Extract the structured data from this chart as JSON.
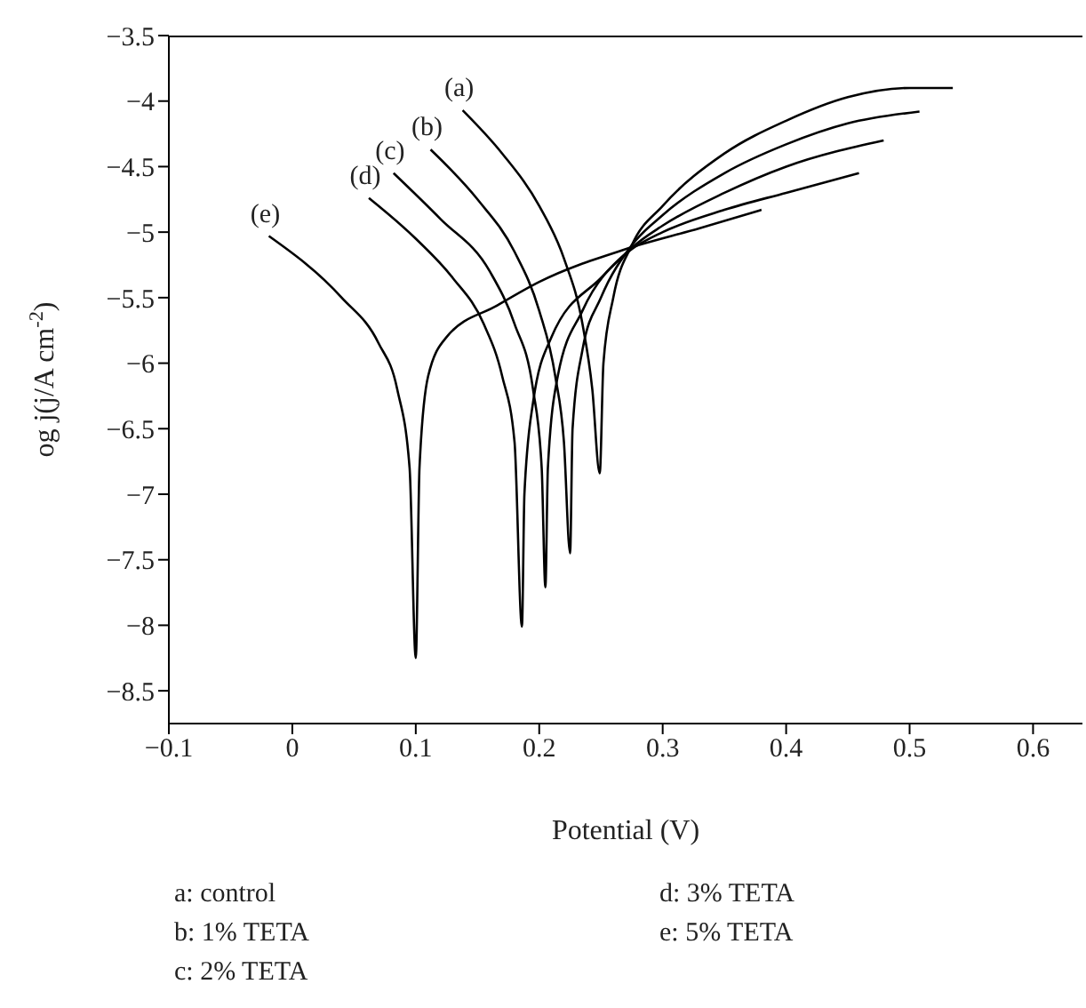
{
  "chart_data": {
    "type": "line",
    "xlabel": "Potential (V)",
    "ylabel": "og j(j/A cm$^{-2}$)",
    "xlim": [
      -0.1,
      0.64
    ],
    "xticks": [
      -0.1,
      0,
      0.1,
      0.2,
      0.3,
      0.4,
      0.5,
      0.6
    ],
    "ylim": [
      -8.75,
      -3.5
    ],
    "yticks": [
      -3.5,
      -4,
      -4.5,
      -5,
      -5.5,
      -6,
      -6.5,
      -7,
      -7.5,
      -8,
      -8.5
    ],
    "legend": false,
    "marker": "none",
    "line_style": "solid",
    "series": [
      {
        "name": "(a)",
        "color": "#000000",
        "x": [
          0.138,
          0.17,
          0.2,
          0.22,
          0.235,
          0.243,
          0.249,
          0.252,
          0.26,
          0.275,
          0.3,
          0.35,
          0.4,
          0.45,
          0.5,
          0.535
        ],
        "values": [
          -4.07,
          -4.4,
          -4.8,
          -5.2,
          -5.7,
          -6.2,
          -6.84,
          -6.0,
          -5.5,
          -5.1,
          -4.8,
          -4.4,
          -4.15,
          -3.97,
          -3.9,
          -3.9
        ]
      },
      {
        "name": "(b)",
        "color": "#000000",
        "x": [
          0.112,
          0.15,
          0.18,
          0.2,
          0.213,
          0.22,
          0.225,
          0.227,
          0.235,
          0.25,
          0.275,
          0.3,
          0.35,
          0.4,
          0.45,
          0.508
        ],
        "values": [
          -4.37,
          -4.75,
          -5.15,
          -5.6,
          -6.1,
          -6.6,
          -7.45,
          -6.5,
          -5.9,
          -5.5,
          -5.1,
          -4.87,
          -4.55,
          -4.33,
          -4.17,
          -4.08
        ]
      },
      {
        "name": "(c)",
        "color": "#000000",
        "x": [
          0.082,
          0.12,
          0.16,
          0.18,
          0.195,
          0.202,
          0.205,
          0.207,
          0.215,
          0.235,
          0.275,
          0.3,
          0.35,
          0.4,
          0.479
        ],
        "values": [
          -4.55,
          -4.9,
          -5.3,
          -5.7,
          -6.2,
          -6.8,
          -7.71,
          -6.8,
          -6.1,
          -5.6,
          -5.12,
          -4.95,
          -4.7,
          -4.5,
          -4.3
        ]
      },
      {
        "name": "(d)",
        "color": "#000000",
        "x": [
          0.062,
          0.1,
          0.13,
          0.155,
          0.17,
          0.18,
          0.186,
          0.188,
          0.195,
          0.21,
          0.25,
          0.275,
          0.3,
          0.35,
          0.4,
          0.459
        ],
        "values": [
          -4.74,
          -5.05,
          -5.35,
          -5.7,
          -6.1,
          -6.6,
          -8.01,
          -7.0,
          -6.3,
          -5.8,
          -5.35,
          -5.13,
          -5.0,
          -4.83,
          -4.7,
          -4.55
        ]
      },
      {
        "name": "(e)",
        "color": "#000000",
        "x": [
          -0.019,
          0.04,
          0.07,
          0.085,
          0.095,
          0.1,
          0.103,
          0.11,
          0.125,
          0.166,
          0.2,
          0.27,
          0.33,
          0.38
        ],
        "values": [
          -5.03,
          -5.5,
          -5.85,
          -6.2,
          -6.8,
          -8.25,
          -6.8,
          -6.1,
          -5.8,
          -5.56,
          -5.38,
          -5.13,
          -4.97,
          -4.83
        ]
      }
    ],
    "annotations": [
      "a: control",
      "b: 1% TETA",
      "c: 2% TETA",
      "d: 3% TETA",
      "e: 5% TETA"
    ]
  }
}
